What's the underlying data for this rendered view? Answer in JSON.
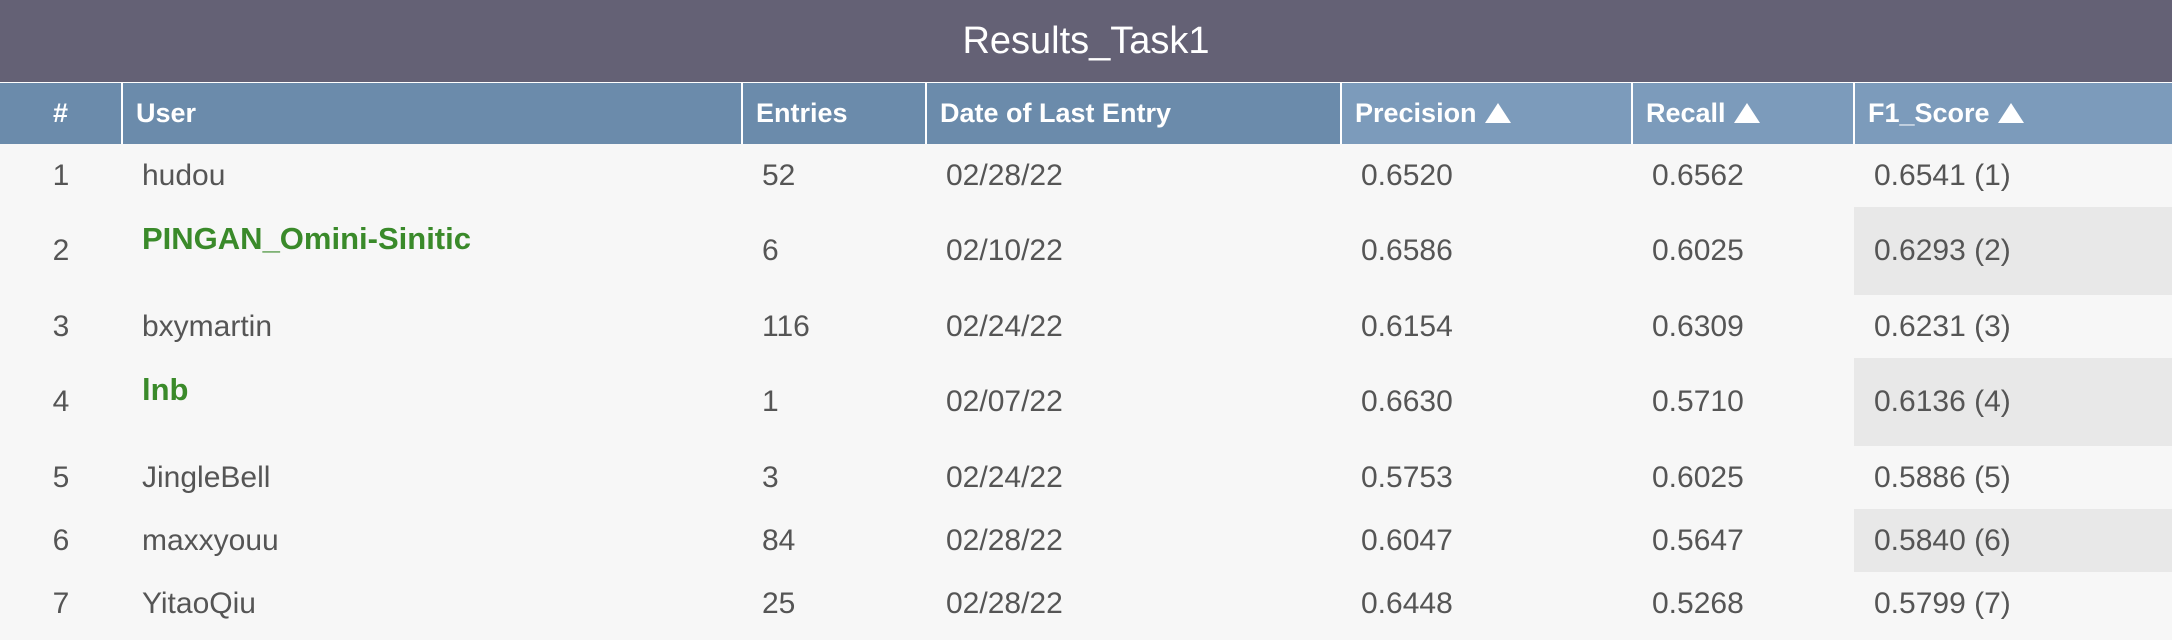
{
  "title": "Results_Task1",
  "columns": {
    "rank": "#",
    "user": "User",
    "entries": "Entries",
    "date": "Date of Last Entry",
    "precision": "Precision",
    "recall": "Recall",
    "f1": "F1_Score"
  },
  "rows": [
    {
      "rank": "1",
      "user": "hudou",
      "highlighted": false,
      "entries": "52",
      "date": "02/28/22",
      "precision": "0.6520",
      "recall": "0.6562",
      "f1": "0.6541 (1)"
    },
    {
      "rank": "2",
      "user": "PINGAN_Omini-Sinitic",
      "highlighted": true,
      "entries": "6",
      "date": "02/10/22",
      "precision": "0.6586",
      "recall": "0.6025",
      "f1": "0.6293 (2)"
    },
    {
      "rank": "3",
      "user": "bxymartin",
      "highlighted": false,
      "entries": "116",
      "date": "02/24/22",
      "precision": "0.6154",
      "recall": "0.6309",
      "f1": "0.6231 (3)"
    },
    {
      "rank": "4",
      "user": "lnb",
      "highlighted": true,
      "entries": "1",
      "date": "02/07/22",
      "precision": "0.6630",
      "recall": "0.5710",
      "f1": "0.6136 (4)"
    },
    {
      "rank": "5",
      "user": "JingleBell",
      "highlighted": false,
      "entries": "3",
      "date": "02/24/22",
      "precision": "0.5753",
      "recall": "0.6025",
      "f1": "0.5886 (5)"
    },
    {
      "rank": "6",
      "user": "maxxyouu",
      "highlighted": false,
      "entries": "84",
      "date": "02/28/22",
      "precision": "0.6047",
      "recall": "0.5647",
      "f1": "0.5840 (6)"
    },
    {
      "rank": "7",
      "user": "YitaoQiu",
      "highlighted": false,
      "entries": "25",
      "date": "02/28/22",
      "precision": "0.6448",
      "recall": "0.5268",
      "f1": "0.5799 (7)"
    }
  ],
  "colors": {
    "title_bar": "#646175",
    "header": "#6b8bab",
    "sortable_header": "#7c9bbb",
    "highlight_user": "#3a8a2a"
  },
  "icons": {
    "sort": "sort-up-arrow-icon"
  }
}
